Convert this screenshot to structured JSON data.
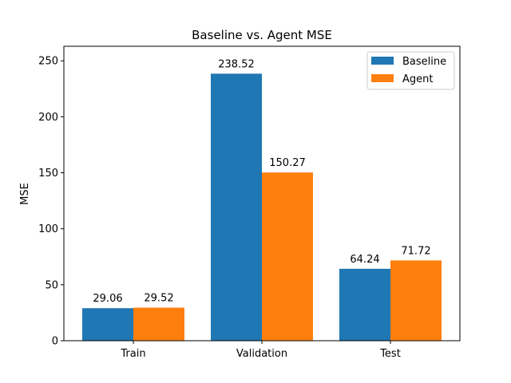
{
  "chart_data": {
    "type": "bar",
    "title": "Baseline vs. Agent MSE",
    "xlabel": "",
    "ylabel": "MSE",
    "categories": [
      "Train",
      "Validation",
      "Test"
    ],
    "series": [
      {
        "name": "Baseline",
        "values": [
          29.06,
          238.52,
          64.24
        ],
        "color": "#1f77b4"
      },
      {
        "name": "Agent",
        "values": [
          29.52,
          150.27,
          71.72
        ],
        "color": "#ff7f0e"
      }
    ],
    "data_labels": [
      [
        "29.06",
        "238.52",
        "64.24"
      ],
      [
        "29.52",
        "150.27",
        "71.72"
      ]
    ],
    "yticks": [
      "0",
      "50",
      "100",
      "150",
      "200",
      "250"
    ],
    "ylim": [
      0,
      263
    ],
    "grid": false,
    "legend_position": "top-right"
  }
}
